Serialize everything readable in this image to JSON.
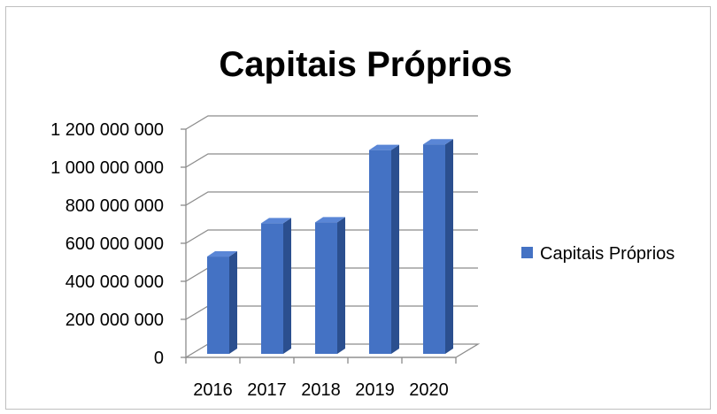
{
  "chart_data": {
    "type": "bar",
    "title": "Capitais Próprios",
    "xlabel": "",
    "ylabel": "",
    "categories": [
      "2016",
      "2017",
      "2018",
      "2019",
      "2020"
    ],
    "series": [
      {
        "name": "Capitais Próprios",
        "values": [
          530000000,
          705000000,
          710000000,
          1090000000,
          1120000000
        ],
        "color": "#4472C4"
      }
    ],
    "ylim": [
      0,
      1200000000
    ],
    "yticks": [
      0,
      200000000,
      400000000,
      600000000,
      800000000,
      1000000000,
      1200000000
    ],
    "ytick_labels": [
      "0",
      "200 000 000",
      "400 000 000",
      "600 000 000",
      "800 000 000",
      "1 000 000 000",
      "1 200 000 000"
    ],
    "grid": true,
    "style": "3d-column",
    "legend": {
      "position": "right",
      "labels": [
        "Capitais Próprios"
      ]
    }
  }
}
